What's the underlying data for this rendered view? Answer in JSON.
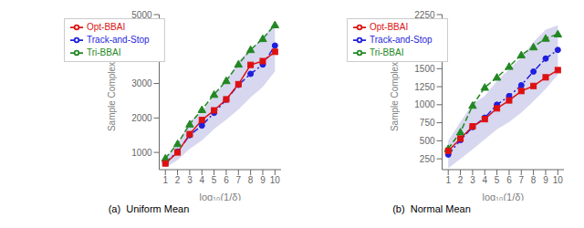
{
  "chart_data": [
    {
      "type": "line",
      "title": "(a)  Uniform Mean",
      "xlabel": "log₁₀(1/δ)",
      "ylabel": "Sample Complexity",
      "x": [
        1,
        2,
        3,
        4,
        5,
        6,
        7,
        8,
        9,
        10
      ],
      "series": [
        {
          "name": "Track-and-Stop",
          "color": "#1f1fdd",
          "marker": "circle",
          "line_style": "dashdot",
          "values": [
            700,
            1020,
            1500,
            1780,
            2150,
            2530,
            2960,
            3280,
            3550,
            4100
          ],
          "band": {
            "lower": [
              550,
              780,
              1100,
              1350,
              1680,
              1950,
              2250,
              2600,
              2900,
              3350
            ],
            "upper": [
              850,
              1250,
              1900,
              2200,
              2620,
              3100,
              3650,
              4000,
              4300,
              4800
            ],
            "color": "#b0b0e0"
          }
        },
        {
          "name": "Tri-BBAI",
          "color": "#228822",
          "marker": "triangle",
          "line_style": "dashed",
          "values": [
            830,
            1250,
            1820,
            2240,
            2680,
            3080,
            3560,
            3980,
            4300,
            4700
          ]
        },
        {
          "name": "Opt-BBAI",
          "color": "#dd1111",
          "marker": "square",
          "line_style": "solid",
          "values": [
            680,
            1000,
            1530,
            1940,
            2220,
            2540,
            2980,
            3540,
            3650,
            3920
          ]
        }
      ],
      "xlim": [
        0.5,
        10.5
      ],
      "xticks": [
        1,
        2,
        3,
        4,
        5,
        6,
        7,
        8,
        9,
        10
      ],
      "ylim": [
        500,
        5000
      ],
      "yticks": [
        1000,
        2000,
        3000,
        4000,
        5000
      ],
      "legend": "upper left",
      "grid": false
    },
    {
      "type": "line",
      "title": "(b)  Normal Mean",
      "xlabel": "log₁₀(1/δ)",
      "ylabel": "Sample Complexity",
      "x": [
        1,
        2,
        3,
        4,
        5,
        6,
        7,
        8,
        9,
        10
      ],
      "series": [
        {
          "name": "Track-and-Stop",
          "color": "#1f1fdd",
          "marker": "circle",
          "line_style": "dashdot",
          "values": [
            310,
            510,
            690,
            820,
            1000,
            1120,
            1270,
            1460,
            1640,
            1760
          ],
          "band": {
            "lower": [
              120,
              250,
              380,
              520,
              660,
              760,
              890,
              1050,
              1220,
              1420
            ],
            "upper": [
              500,
              760,
              1010,
              1120,
              1330,
              1490,
              1660,
              1870,
              2040,
              2100
            ],
            "color": "#b0b0e0"
          }
        },
        {
          "name": "Tri-BBAI",
          "color": "#228822",
          "marker": "triangle",
          "line_style": "dashed",
          "values": [
            390,
            620,
            990,
            1240,
            1380,
            1530,
            1690,
            1800,
            1920,
            1980
          ]
        },
        {
          "name": "Opt-BBAI",
          "color": "#dd1111",
          "marker": "square",
          "line_style": "solid",
          "values": [
            360,
            530,
            700,
            800,
            950,
            1060,
            1190,
            1260,
            1380,
            1480
          ]
        }
      ],
      "xlim": [
        0.5,
        10.5
      ],
      "xticks": [
        1,
        2,
        3,
        4,
        5,
        6,
        7,
        8,
        9,
        10
      ],
      "ylim": [
        100,
        2250
      ],
      "yticks": [
        250,
        500,
        750,
        1000,
        1250,
        1500,
        1750,
        2000,
        2250
      ],
      "legend": "upper left",
      "grid": false
    }
  ]
}
